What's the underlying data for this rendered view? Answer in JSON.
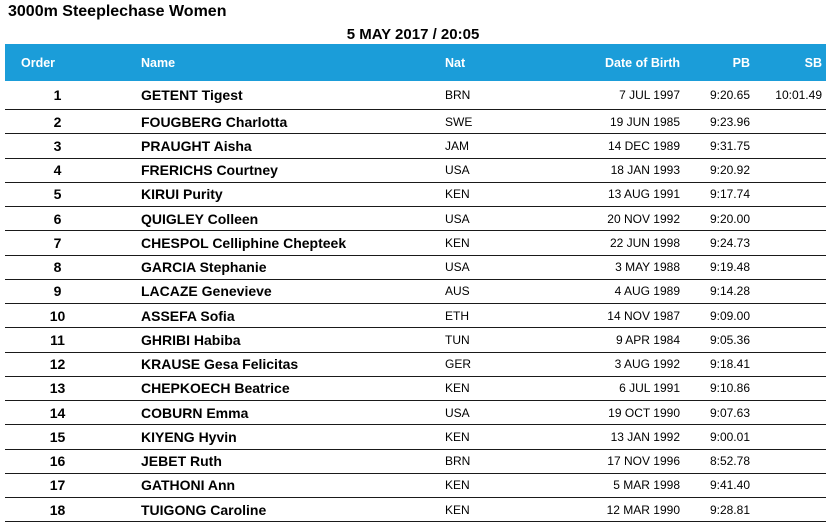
{
  "page": {
    "title": "3000m Steeplechase Women",
    "datetime": "5 MAY 2017 / 20:05"
  },
  "colors": {
    "header_bg": "#1B9DD9",
    "header_text": "#FFFFFF",
    "row_separator": "#1A1A1A",
    "body_text": "#000000"
  },
  "table": {
    "columns": {
      "order": "Order",
      "name": "Name",
      "nat": "Nat",
      "dob": "Date of Birth",
      "pb": "PB",
      "sb": "SB"
    },
    "rows": [
      {
        "order": "1",
        "name": "GETENT Tigest",
        "nat": "BRN",
        "dob": "7 JUL 1997",
        "pb": "9:20.65",
        "sb": "10:01.49"
      },
      {
        "order": "2",
        "name": "FOUGBERG Charlotta",
        "nat": "SWE",
        "dob": "19 JUN 1985",
        "pb": "9:23.96",
        "sb": ""
      },
      {
        "order": "3",
        "name": "PRAUGHT Aisha",
        "nat": "JAM",
        "dob": "14 DEC 1989",
        "pb": "9:31.75",
        "sb": ""
      },
      {
        "order": "4",
        "name": "FRERICHS Courtney",
        "nat": "USA",
        "dob": "18 JAN 1993",
        "pb": "9:20.92",
        "sb": ""
      },
      {
        "order": "5",
        "name": "KIRUI Purity",
        "nat": "KEN",
        "dob": "13 AUG 1991",
        "pb": "9:17.74",
        "sb": ""
      },
      {
        "order": "6",
        "name": "QUIGLEY Colleen",
        "nat": "USA",
        "dob": "20 NOV 1992",
        "pb": "9:20.00",
        "sb": ""
      },
      {
        "order": "7",
        "name": "CHESPOL Celliphine Chepteek",
        "nat": "KEN",
        "dob": "22 JUN 1998",
        "pb": "9:24.73",
        "sb": ""
      },
      {
        "order": "8",
        "name": "GARCIA Stephanie",
        "nat": "USA",
        "dob": "3 MAY 1988",
        "pb": "9:19.48",
        "sb": ""
      },
      {
        "order": "9",
        "name": "LACAZE Genevieve",
        "nat": "AUS",
        "dob": "4 AUG 1989",
        "pb": "9:14.28",
        "sb": ""
      },
      {
        "order": "10",
        "name": "ASSEFA Sofia",
        "nat": "ETH",
        "dob": "14 NOV 1987",
        "pb": "9:09.00",
        "sb": ""
      },
      {
        "order": "11",
        "name": "GHRIBI Habiba",
        "nat": "TUN",
        "dob": "9 APR 1984",
        "pb": "9:05.36",
        "sb": ""
      },
      {
        "order": "12",
        "name": "KRAUSE Gesa Felicitas",
        "nat": "GER",
        "dob": "3 AUG 1992",
        "pb": "9:18.41",
        "sb": ""
      },
      {
        "order": "13",
        "name": "CHEPKOECH Beatrice",
        "nat": "KEN",
        "dob": "6 JUL 1991",
        "pb": "9:10.86",
        "sb": ""
      },
      {
        "order": "14",
        "name": "COBURN Emma",
        "nat": "USA",
        "dob": "19 OCT 1990",
        "pb": "9:07.63",
        "sb": ""
      },
      {
        "order": "15",
        "name": "KIYENG Hyvin",
        "nat": "KEN",
        "dob": "13 JAN 1992",
        "pb": "9:00.01",
        "sb": ""
      },
      {
        "order": "16",
        "name": "JEBET Ruth",
        "nat": "BRN",
        "dob": "17 NOV 1996",
        "pb": "8:52.78",
        "sb": ""
      },
      {
        "order": "17",
        "name": "GATHONI Ann",
        "nat": "KEN",
        "dob": "5 MAR 1998",
        "pb": "9:41.40",
        "sb": ""
      },
      {
        "order": "18",
        "name": "TUIGONG Caroline",
        "nat": "KEN",
        "dob": "12 MAR 1990",
        "pb": "9:28.81",
        "sb": ""
      }
    ]
  }
}
